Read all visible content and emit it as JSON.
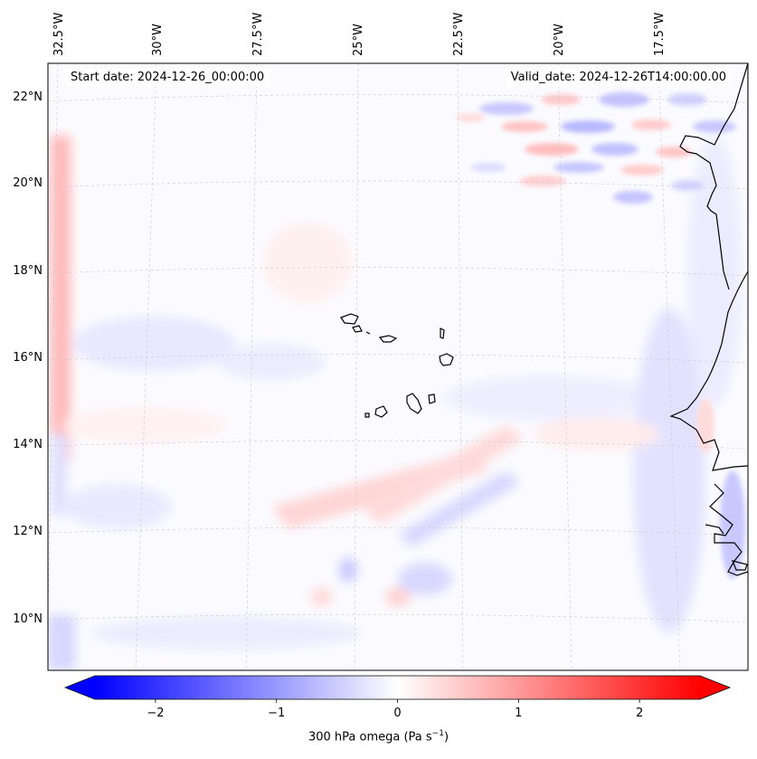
{
  "map": {
    "start_date": "Start date: 2024-12-26_00:00:00",
    "valid_date": "Valid_date: 2024-12-26T14:00:00.00",
    "lon_labels": [
      "32.5°W",
      "30°W",
      "27.5°W",
      "25°W",
      "22.5°W",
      "20°W",
      "17.5°W"
    ],
    "lat_labels": [
      "22°N",
      "20°N",
      "18°N",
      "16°N",
      "14°N",
      "12°N",
      "10°N"
    ]
  },
  "colorbar": {
    "variable": "300 hPa omega (Pa s",
    "unit_exponent": "−1",
    "unit_close": ")",
    "ticks": [
      "−2",
      "−1",
      "0",
      "1",
      "2"
    ],
    "tick_values": [
      -2,
      -1,
      0,
      1,
      2
    ],
    "range": [
      -2.5,
      2.5
    ],
    "colors": {
      "negative": "#0000ff",
      "zero": "#ffffff",
      "positive": "#ff0000"
    }
  }
}
